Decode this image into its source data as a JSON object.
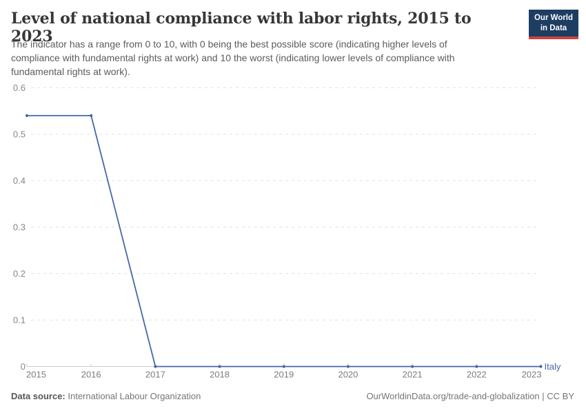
{
  "header": {
    "title": "Level of national compliance with labor rights, 2015 to 2023",
    "subtitle": "The indicator has a range from 0 to 10, with 0 being the best possible score (indicating higher levels of compliance with fundamental rights at work) and 10 the worst (indicating lower levels of compliance with fundamental rights at work).",
    "logo": {
      "line1": "Our World",
      "line2": "in Data",
      "bg_color": "#1d3d63",
      "stripe_color": "#d0423b"
    }
  },
  "chart_data": {
    "type": "line",
    "title": "Level of national compliance with labor rights, 2015 to 2023",
    "x": [
      2015,
      2016,
      2017,
      2018,
      2019,
      2020,
      2021,
      2022,
      2023
    ],
    "series": [
      {
        "name": "Italy",
        "color": "#4766a8",
        "values": [
          0.54,
          0.54,
          0,
          0,
          0,
          0,
          0,
          0,
          0
        ]
      }
    ],
    "xlabel": "",
    "ylabel": "",
    "ylim": [
      0,
      0.6
    ],
    "yticks": [
      0,
      0.1,
      0.2,
      0.3,
      0.4,
      0.5,
      0.6
    ],
    "grid": true,
    "gridline_color": "#e2e2e2",
    "axis_color": "#cfcfcf",
    "legend": "end-of-line-label"
  },
  "footer": {
    "source_label": "Data source:",
    "source_value": "International Labour Organization",
    "credit": "OurWorldinData.org/trade-and-globalization | CC BY"
  }
}
